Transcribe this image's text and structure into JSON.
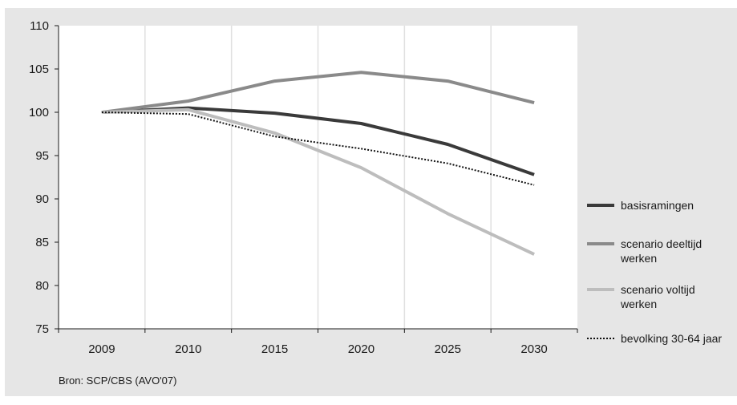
{
  "chart_data": {
    "type": "line",
    "categories": [
      "2009",
      "2010",
      "2015",
      "2020",
      "2025",
      "2030"
    ],
    "ylim": [
      75,
      110
    ],
    "yticks": [
      75,
      80,
      85,
      90,
      95,
      100,
      105,
      110
    ],
    "grid": "vertical",
    "legend_position": "right",
    "series": [
      {
        "name": "basisramingen",
        "values": [
          100,
          100.5,
          99.9,
          98.7,
          96.3,
          92.8
        ],
        "color": "#3a3a3a",
        "style": "solid"
      },
      {
        "name": "scenario deeltijd werken",
        "legend_lines": [
          "scenario deeltijd",
          "werken"
        ],
        "values": [
          100,
          101.3,
          103.6,
          104.6,
          103.6,
          101.1
        ],
        "color": "#8a8a8a",
        "style": "solid"
      },
      {
        "name": "scenario voltijd werken",
        "legend_lines": [
          "scenario voltijd",
          "werken"
        ],
        "values": [
          100,
          100.3,
          97.6,
          93.6,
          88.3,
          83.6
        ],
        "color": "#bdbdbd",
        "style": "solid"
      },
      {
        "name": "bevolking 30-64 jaar",
        "values": [
          100,
          99.8,
          97.2,
          95.8,
          94.1,
          91.6
        ],
        "color": "#111111",
        "style": "dotted"
      }
    ]
  },
  "source": "Bron: SCP/CBS (AVO'07)"
}
